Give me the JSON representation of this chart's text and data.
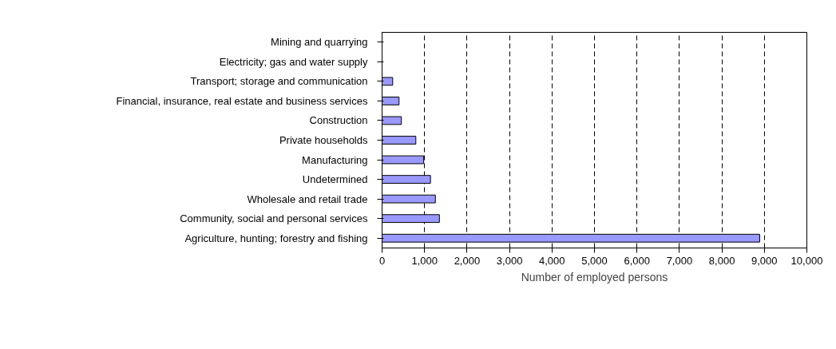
{
  "chart_data": {
    "type": "bar",
    "orientation": "horizontal",
    "xlabel": "Number of employed persons",
    "categories": [
      "Mining and quarrying",
      "Electricity; gas and water supply",
      "Transport; storage and communication",
      "Financial, insurance, real estate and business services",
      "Construction",
      "Private households",
      "Manufacturing",
      "Undetermined",
      "Wholesale and retail trade",
      "Community, social and personal services",
      "Agriculture, hunting; forestry and fishing"
    ],
    "values": [
      null,
      null,
      250,
      400,
      455,
      795,
      980,
      1140,
      1255,
      1350,
      8890
    ],
    "color": "#9999ff",
    "xlim": [
      0,
      10000
    ],
    "xticks": [
      {
        "value": 0,
        "label": "0"
      },
      {
        "value": 1000,
        "label": "1,000"
      },
      {
        "value": 2000,
        "label": "2,000"
      },
      {
        "value": 3000,
        "label": "3,000"
      },
      {
        "value": 4000,
        "label": "4,000"
      },
      {
        "value": 5000,
        "label": "5,000"
      },
      {
        "value": 6000,
        "label": "6,000"
      },
      {
        "value": 7000,
        "label": "7,000"
      },
      {
        "value": 8000,
        "label": "8,000"
      },
      {
        "value": 9000,
        "label": "9,000"
      },
      {
        "value": 10000,
        "label": "10,000"
      }
    ],
    "grid": "x"
  }
}
